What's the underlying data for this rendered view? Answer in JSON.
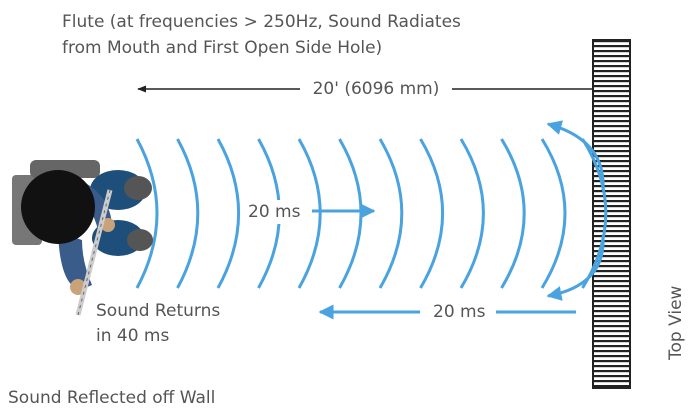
{
  "title": {
    "lines": [
      "Flute (at frequencies > 250Hz, Sound Radiates",
      "from Mouth and First Open Side Hole)"
    ]
  },
  "dimension": {
    "label": "20' (6096 mm)"
  },
  "outgoing": {
    "label": "20 ms"
  },
  "returning": {
    "label": "20 ms"
  },
  "returns_note": {
    "lines": [
      "Sound Returns",
      "in 40 ms"
    ]
  },
  "caption": "Sound Reflected off Wall",
  "view_label": "Top View"
}
